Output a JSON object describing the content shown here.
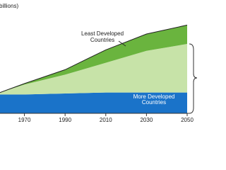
{
  "chart_data": {
    "type": "stacked-area",
    "title": "billions)",
    "x": [
      1958,
      1970,
      1990,
      2010,
      2030,
      2050
    ],
    "xlim": [
      1958,
      2050
    ],
    "xticks": [
      1970,
      1990,
      2010,
      2030,
      2050
    ],
    "ylim": [
      0,
      10
    ],
    "series": [
      {
        "name": "More Developed Countries",
        "color": "#1a73c9",
        "values": [
          1.9,
          1.9,
          2.0,
          2.1,
          2.1,
          2.1
        ]
      },
      {
        "name": null,
        "color": "#c7e3a8",
        "values": [
          0.2,
          1.0,
          1.9,
          3.0,
          4.2,
          4.9
        ]
      },
      {
        "name": "Least Developed Countries",
        "color": "#6ab43e",
        "values": [
          0.0,
          0.1,
          0.5,
          1.3,
          1.7,
          1.9
        ]
      }
    ]
  }
}
